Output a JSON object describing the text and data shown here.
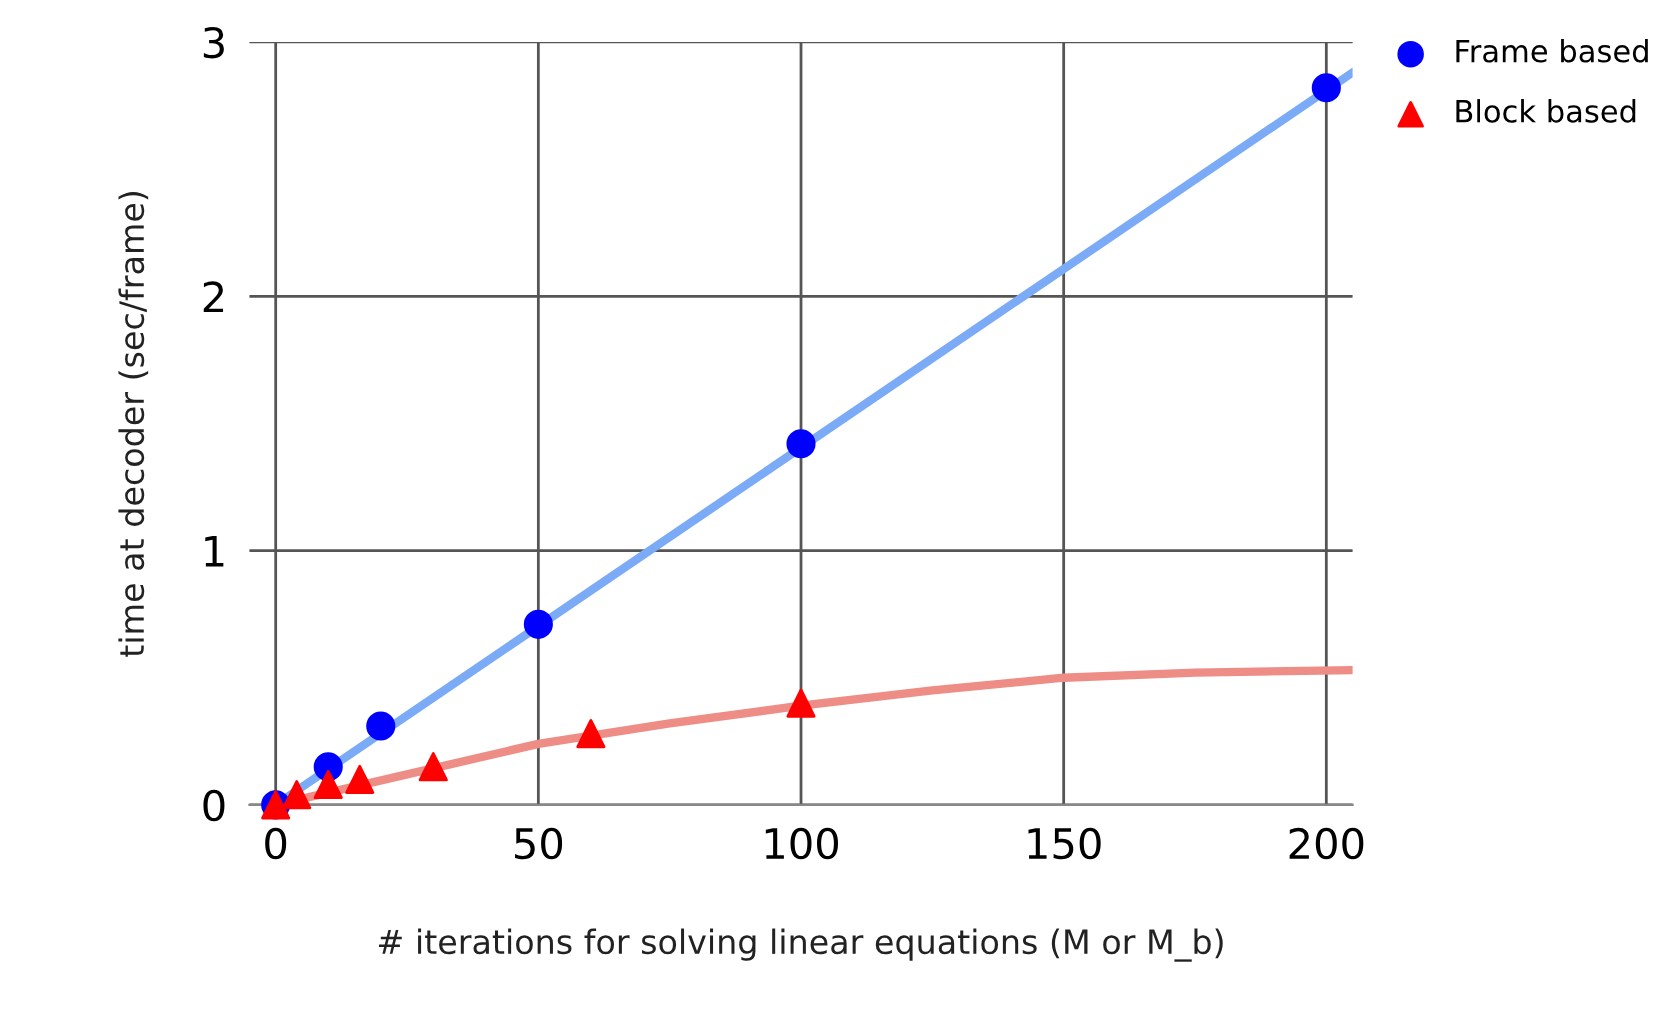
{
  "chart_data": {
    "type": "scatter",
    "xlabel": "# iterations for solving linear equations (M or M_b)",
    "ylabel": "time at decoder (sec/frame)",
    "xlim": [
      -5,
      205
    ],
    "ylim": [
      0,
      3
    ],
    "xticks": [
      0,
      50,
      100,
      150,
      200
    ],
    "yticks": [
      0,
      1,
      2,
      3
    ],
    "grid": true,
    "legend": "top right",
    "series": [
      {
        "type": "line",
        "color": "#7baaf7",
        "x": [
          0,
          205
        ],
        "values": [
          0.0,
          2.88
        ],
        "marker": "none"
      },
      {
        "type": "line",
        "color": "#ee8d85",
        "x": [
          0,
          25,
          50,
          75,
          100,
          125,
          150,
          175,
          205
        ],
        "values": [
          0.0,
          0.12,
          0.24,
          0.32,
          0.39,
          0.45,
          0.5,
          0.52,
          0.53
        ],
        "marker": "none"
      },
      {
        "name": "Frame based",
        "color": "#0000ff",
        "marker": "circle",
        "x": [
          0,
          10,
          20,
          50,
          100,
          200
        ],
        "values": [
          0.0,
          0.15,
          0.31,
          0.71,
          1.42,
          2.82
        ]
      },
      {
        "name": "Block based",
        "color": "#ff0000",
        "marker": "triangle",
        "x": [
          0,
          4,
          10,
          16,
          30,
          60,
          100
        ],
        "values": [
          0.0,
          0.04,
          0.08,
          0.1,
          0.15,
          0.28,
          0.4
        ]
      }
    ]
  }
}
